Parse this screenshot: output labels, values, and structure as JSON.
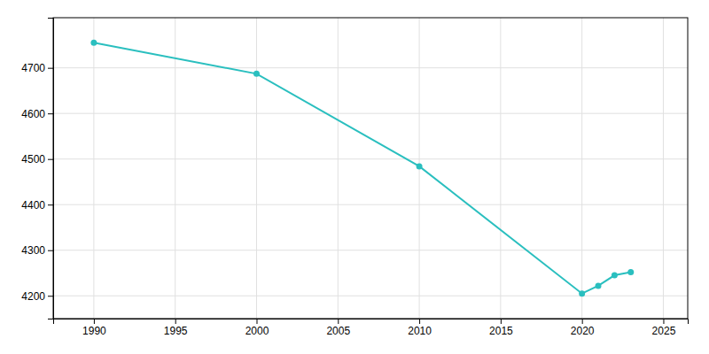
{
  "chart_data": {
    "type": "line",
    "x": [
      1990,
      2000,
      2010,
      2020,
      2021,
      2022,
      2023
    ],
    "values": [
      4755,
      4687,
      4484,
      4205,
      4222,
      4245,
      4252
    ],
    "color": "#2abfbf",
    "marker": "o",
    "xlim": [
      1987.5,
      2026.5
    ],
    "ylim": [
      4150,
      4810
    ],
    "xticks": [
      1990,
      1995,
      2000,
      2005,
      2010,
      2015,
      2020,
      2025
    ],
    "yticks": [
      4200,
      4300,
      4400,
      4500,
      4600,
      4700
    ],
    "grid": true
  }
}
